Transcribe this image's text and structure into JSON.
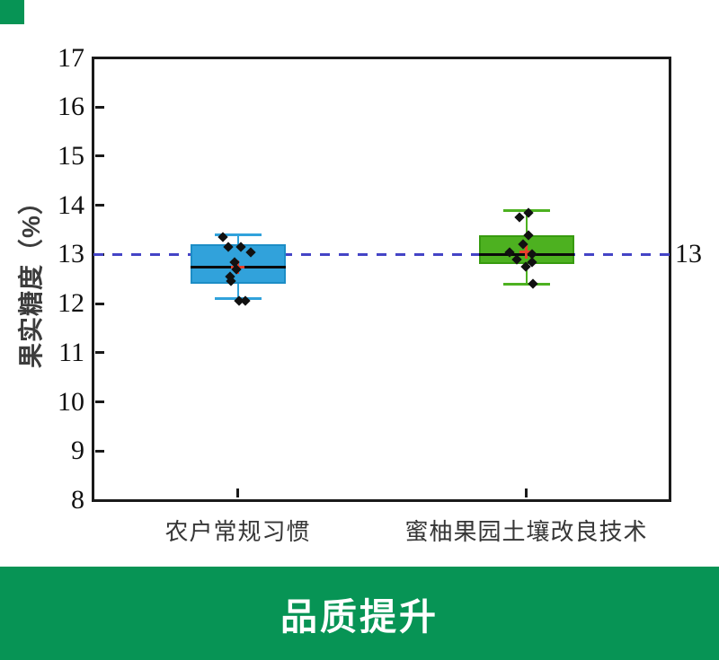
{
  "corner_marker": {
    "color": "#079455"
  },
  "banner": {
    "label": "品质提升",
    "bg_color": "#079455",
    "text_color": "#ffffff"
  },
  "chart_data": {
    "type": "boxplot",
    "title": "",
    "ylabel": "果实糖度（%）",
    "xlabel": "",
    "ylim": [
      8,
      17
    ],
    "yticks": [
      8,
      9,
      10,
      11,
      12,
      13,
      14,
      15,
      16,
      17
    ],
    "categories": [
      "农户常规习惯",
      "蜜柚果园土壤改良技术"
    ],
    "reference_line": {
      "value": 13,
      "label": "13",
      "color": "#4444C6",
      "style": "dashed"
    },
    "frame_color": "#1a1a1a",
    "point_color": "#111111",
    "mean_color": "#E8402C",
    "median_color": "#0a0a0a",
    "series": [
      {
        "name": "农户常规习惯",
        "box_color": "#31A2DB",
        "edge_color": "#1C8DC6",
        "whisker_low": 12.1,
        "q1": 12.4,
        "median": 12.75,
        "q3": 13.2,
        "whisker_high": 13.4,
        "mean": 12.75,
        "points": [
          {
            "y": 13.35,
            "dx": -17
          },
          {
            "y": 13.15,
            "dx": -11
          },
          {
            "y": 13.15,
            "dx": 3
          },
          {
            "y": 13.05,
            "dx": 14
          },
          {
            "y": 12.85,
            "dx": -4
          },
          {
            "y": 12.7,
            "dx": -2
          },
          {
            "y": 12.55,
            "dx": -9
          },
          {
            "y": 12.45,
            "dx": -8
          },
          {
            "y": 12.05,
            "dx": 1
          },
          {
            "y": 12.05,
            "dx": 8
          }
        ]
      },
      {
        "name": "蜜柚果园土壤改良技术",
        "box_color": "#4DB120",
        "edge_color": "#379B0F",
        "whisker_low": 12.4,
        "q1": 12.8,
        "median": 13.0,
        "q3": 13.4,
        "whisker_high": 13.9,
        "mean": 13.05,
        "points": [
          {
            "y": 13.85,
            "dx": 2
          },
          {
            "y": 13.75,
            "dx": -8
          },
          {
            "y": 13.4,
            "dx": 2
          },
          {
            "y": 13.2,
            "dx": -4
          },
          {
            "y": 13.05,
            "dx": -19
          },
          {
            "y": 13.0,
            "dx": 6
          },
          {
            "y": 12.9,
            "dx": -11
          },
          {
            "y": 12.85,
            "dx": 6
          },
          {
            "y": 12.75,
            "dx": -1
          },
          {
            "y": 12.4,
            "dx": 7
          }
        ]
      }
    ]
  }
}
